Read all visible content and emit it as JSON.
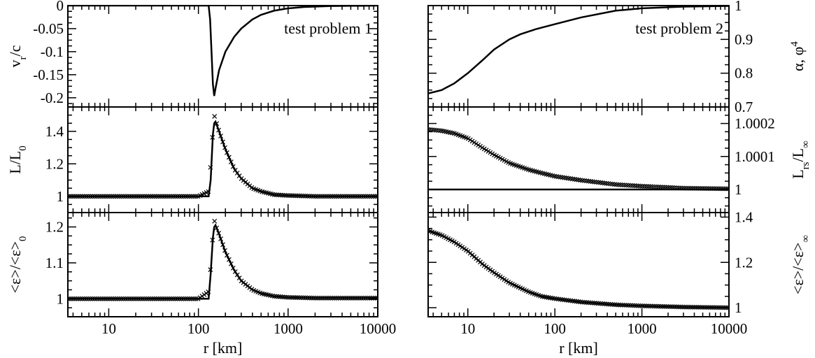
{
  "chart_data": [
    {
      "type": "line",
      "panel": "top-left",
      "annotation": "test problem 1",
      "xlabel": "",
      "ylabel": "v_r/c",
      "xscale": "log",
      "xlim": [
        3.5,
        10000
      ],
      "ylim": [
        -0.22,
        0
      ],
      "yticks": [
        "0",
        "-0.05",
        "-0.1",
        "-0.15",
        "-0.2"
      ],
      "series": [
        {
          "style": "line",
          "x": [
            3.5,
            100,
            130,
            135,
            140,
            145,
            150,
            155,
            170,
            200,
            250,
            300,
            400,
            500,
            700,
            1000,
            1500,
            3000,
            10000
          ],
          "y": [
            0,
            0,
            0,
            -0.03,
            -0.1,
            -0.17,
            -0.196,
            -0.18,
            -0.14,
            -0.1,
            -0.068,
            -0.05,
            -0.03,
            -0.02,
            -0.011,
            -0.006,
            -0.003,
            -0.001,
            0
          ]
        }
      ]
    },
    {
      "type": "line",
      "panel": "middle-left",
      "xlabel": "",
      "ylabel": "L/L_0",
      "xscale": "log",
      "xlim": [
        3.5,
        10000
      ],
      "ylim": [
        0.9,
        1.55
      ],
      "yticks": [
        "1",
        "1.2",
        "1.4"
      ],
      "series": [
        {
          "style": "line",
          "x": [
            3.5,
            100,
            130,
            137,
            145,
            150,
            155,
            170,
            200,
            250,
            300,
            400,
            500,
            700,
            1000,
            2000,
            10000
          ],
          "y": [
            1,
            1,
            1,
            1.1,
            1.38,
            1.45,
            1.46,
            1.4,
            1.29,
            1.17,
            1.11,
            1.05,
            1.03,
            1.01,
            1.005,
            1.0,
            1.0
          ]
        },
        {
          "style": "markers",
          "marker": "x",
          "x": [
            3.5,
            100,
            130,
            137,
            145,
            150,
            155,
            170,
            200,
            250,
            300,
            400,
            500,
            700,
            1000,
            2000,
            10000
          ],
          "y": [
            1,
            1,
            1.03,
            1.2,
            1.4,
            1.5,
            1.47,
            1.4,
            1.29,
            1.17,
            1.11,
            1.05,
            1.03,
            1.01,
            1.005,
            1.0,
            1.0
          ]
        }
      ]
    },
    {
      "type": "line",
      "panel": "bottom-left",
      "xlabel": "r [km]",
      "ylabel": "<ε>/<ε>_0",
      "xscale": "log",
      "xlim": [
        3.5,
        10000
      ],
      "ylim": [
        0.95,
        1.24
      ],
      "xticks": [
        "10",
        "100",
        "1000",
        "10000"
      ],
      "yticks": [
        "1",
        "1.1",
        "1.2"
      ],
      "series": [
        {
          "style": "line",
          "x": [
            3.5,
            100,
            130,
            137,
            145,
            150,
            155,
            170,
            200,
            250,
            300,
            400,
            500,
            700,
            1000,
            2000,
            10000
          ],
          "y": [
            1,
            1,
            1,
            1.07,
            1.17,
            1.2,
            1.205,
            1.18,
            1.13,
            1.08,
            1.05,
            1.025,
            1.015,
            1.007,
            1.004,
            1.002,
            1.002
          ]
        },
        {
          "style": "markers",
          "marker": "x",
          "x": [
            3.5,
            100,
            130,
            137,
            145,
            150,
            155,
            170,
            200,
            250,
            300,
            400,
            500,
            700,
            1000,
            2000,
            10000
          ],
          "y": [
            1,
            1,
            1.02,
            1.09,
            1.18,
            1.22,
            1.205,
            1.18,
            1.13,
            1.08,
            1.05,
            1.025,
            1.015,
            1.007,
            1.004,
            1.002,
            1.002
          ]
        }
      ]
    },
    {
      "type": "line",
      "panel": "top-right",
      "annotation": "test problem 2",
      "xlabel": "",
      "ylabel": "α, φ^4",
      "xscale": "log",
      "xlim": [
        3.5,
        10000
      ],
      "ylim": [
        0.7,
        1.0
      ],
      "yticks": [
        "1",
        "0.9",
        "0.8",
        "0.7"
      ],
      "series": [
        {
          "style": "line",
          "x": [
            3.5,
            5,
            7,
            10,
            15,
            20,
            30,
            40,
            60,
            100,
            200,
            500,
            1000,
            3000,
            10000
          ],
          "y": [
            0.74,
            0.75,
            0.77,
            0.8,
            0.84,
            0.87,
            0.9,
            0.915,
            0.93,
            0.945,
            0.965,
            0.985,
            0.992,
            0.997,
            0.999
          ]
        }
      ]
    },
    {
      "type": "line",
      "panel": "middle-right",
      "xlabel": "",
      "ylabel": "L_rs/L_∞",
      "xscale": "log",
      "xlim": [
        3.5,
        10000
      ],
      "ylim": [
        0.99993,
        1.00025
      ],
      "yticks": [
        "1",
        "1.0001",
        "1.0002"
      ],
      "series": [
        {
          "style": "line",
          "x": [
            3.5,
            10000
          ],
          "y": [
            1.0,
            1.0
          ]
        },
        {
          "style": "markers",
          "marker": "x",
          "x": [
            3.5,
            5,
            7,
            10,
            15,
            20,
            30,
            50,
            70,
            100,
            200,
            500,
            1000,
            3000,
            10000
          ],
          "y": [
            1.000182,
            1.000178,
            1.00017,
            1.000155,
            1.000125,
            1.000105,
            1.00008,
            1.00006,
            1.00005,
            1.00004,
            1.000028,
            1.000015,
            1.00001,
            1.000004,
            1.000002
          ]
        }
      ]
    },
    {
      "type": "line",
      "panel": "bottom-right",
      "xlabel": "r [km]",
      "ylabel": "<ε>/<ε>_∞",
      "xscale": "log",
      "xlim": [
        3.5,
        10000
      ],
      "ylim": [
        0.96,
        1.42
      ],
      "xticks": [
        "10",
        "100",
        "1000",
        "10000"
      ],
      "yticks": [
        "1",
        "1.2",
        "1.4"
      ],
      "series": [
        {
          "style": "line",
          "x": [
            3.5,
            5,
            7,
            10,
            15,
            20,
            30,
            50,
            70,
            100,
            200,
            500,
            1000,
            3000,
            10000
          ],
          "y": [
            1.34,
            1.32,
            1.29,
            1.25,
            1.19,
            1.155,
            1.11,
            1.07,
            1.05,
            1.04,
            1.025,
            1.013,
            1.008,
            1.003,
            1.0
          ]
        },
        {
          "style": "markers",
          "marker": "x",
          "x": [
            3.5,
            5,
            7,
            10,
            15,
            20,
            30,
            50,
            70,
            100,
            200,
            500,
            1000,
            3000,
            10000
          ],
          "y": [
            1.34,
            1.32,
            1.29,
            1.25,
            1.19,
            1.155,
            1.11,
            1.07,
            1.05,
            1.04,
            1.025,
            1.013,
            1.008,
            1.003,
            1.0
          ]
        }
      ]
    }
  ]
}
